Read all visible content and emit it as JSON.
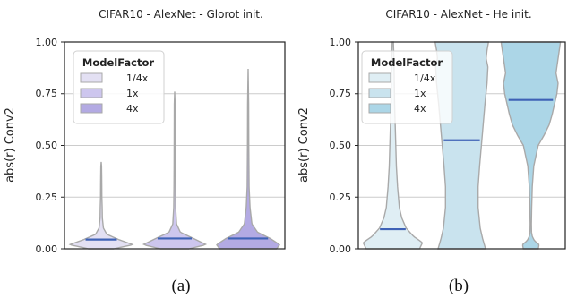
{
  "chart_data": [
    {
      "type": "violin",
      "title": "CIFAR10 - AlexNet - Glorot init.",
      "ylabel": "abs(r) Conv2",
      "ylim": [
        0,
        1
      ],
      "yticks": [
        "0.00",
        "0.25",
        "0.50",
        "0.75",
        "1.00"
      ],
      "grid": true,
      "legend": {
        "title": "ModelFactor",
        "placement": "top-left"
      },
      "caption": "(a)",
      "series": [
        {
          "name": "1/4x",
          "median": 0.045,
          "max": 0.42,
          "color": "#e3e0f3",
          "profile": [
            [
              0,
              0.4
            ],
            [
              0.02,
              1.0
            ],
            [
              0.045,
              0.55
            ],
            [
              0.07,
              0.18
            ],
            [
              0.1,
              0.07
            ],
            [
              0.15,
              0.035
            ],
            [
              0.2,
              0.03
            ],
            [
              0.25,
              0.02
            ],
            [
              0.3,
              0.018
            ],
            [
              0.35,
              0.015
            ],
            [
              0.4,
              0.01
            ],
            [
              0.42,
              0
            ]
          ]
        },
        {
          "name": "1x",
          "median": 0.05,
          "max": 0.76,
          "color": "#cdc6ee",
          "profile": [
            [
              0,
              0.45
            ],
            [
              0.02,
              1.0
            ],
            [
              0.05,
              0.6
            ],
            [
              0.08,
              0.18
            ],
            [
              0.12,
              0.06
            ],
            [
              0.2,
              0.03
            ],
            [
              0.3,
              0.022
            ],
            [
              0.4,
              0.018
            ],
            [
              0.5,
              0.016
            ],
            [
              0.6,
              0.014
            ],
            [
              0.7,
              0.012
            ],
            [
              0.76,
              0
            ]
          ]
        },
        {
          "name": "4x",
          "median": 0.05,
          "max": 0.87,
          "color": "#b3aae3",
          "profile": [
            [
              0,
              0.9
            ],
            [
              0.02,
              1.0
            ],
            [
              0.05,
              0.7
            ],
            [
              0.08,
              0.3
            ],
            [
              0.12,
              0.12
            ],
            [
              0.2,
              0.06
            ],
            [
              0.3,
              0.03
            ],
            [
              0.5,
              0.02
            ],
            [
              0.7,
              0.016
            ],
            [
              0.87,
              0
            ]
          ]
        }
      ]
    },
    {
      "type": "violin",
      "title": "CIFAR10 - AlexNet - He init.",
      "ylabel": "abs(r) Conv2",
      "ylim": [
        0,
        1
      ],
      "yticks": [
        "0.00",
        "0.25",
        "0.50",
        "0.75",
        "1.00"
      ],
      "grid": true,
      "legend": {
        "title": "ModelFactor",
        "placement": "top-left"
      },
      "caption": "(b)",
      "series": [
        {
          "name": "1/4x",
          "median": 0.095,
          "max": 1.0,
          "color": "#dfeef4",
          "profile": [
            [
              0,
              0.9
            ],
            [
              0.03,
              1.0
            ],
            [
              0.06,
              0.7
            ],
            [
              0.1,
              0.45
            ],
            [
              0.15,
              0.3
            ],
            [
              0.2,
              0.22
            ],
            [
              0.3,
              0.16
            ],
            [
              0.4,
              0.12
            ],
            [
              0.5,
              0.1
            ],
            [
              0.6,
              0.08
            ],
            [
              0.7,
              0.06
            ],
            [
              0.8,
              0.05
            ],
            [
              0.9,
              0.04
            ],
            [
              1.0,
              0.02
            ]
          ]
        },
        {
          "name": "1x",
          "median": 0.525,
          "max": 1.0,
          "color": "#c9e3ee",
          "profile": [
            [
              0,
              0.8
            ],
            [
              0.05,
              0.7
            ],
            [
              0.1,
              0.62
            ],
            [
              0.2,
              0.55
            ],
            [
              0.3,
              0.55
            ],
            [
              0.4,
              0.6
            ],
            [
              0.5,
              0.66
            ],
            [
              0.6,
              0.72
            ],
            [
              0.7,
              0.78
            ],
            [
              0.8,
              0.85
            ],
            [
              0.88,
              0.88
            ],
            [
              0.92,
              0.82
            ],
            [
              0.96,
              0.85
            ],
            [
              1.0,
              0.9
            ]
          ]
        },
        {
          "name": "4x",
          "median": 0.72,
          "max": 1.0,
          "color": "#acd6e7",
          "profile": [
            [
              0,
              0.25
            ],
            [
              0.02,
              0.28
            ],
            [
              0.04,
              0.12
            ],
            [
              0.06,
              0.05
            ],
            [
              0.08,
              0.025
            ],
            [
              0.12,
              0.02
            ],
            [
              0.2,
              0.03
            ],
            [
              0.3,
              0.05
            ],
            [
              0.4,
              0.1
            ],
            [
              0.5,
              0.25
            ],
            [
              0.55,
              0.45
            ],
            [
              0.6,
              0.62
            ],
            [
              0.65,
              0.72
            ],
            [
              0.7,
              0.8
            ],
            [
              0.75,
              0.88
            ],
            [
              0.8,
              0.92
            ],
            [
              0.85,
              0.85
            ],
            [
              0.9,
              0.9
            ],
            [
              0.95,
              0.95
            ],
            [
              1.0,
              1.0
            ]
          ]
        }
      ]
    }
  ]
}
